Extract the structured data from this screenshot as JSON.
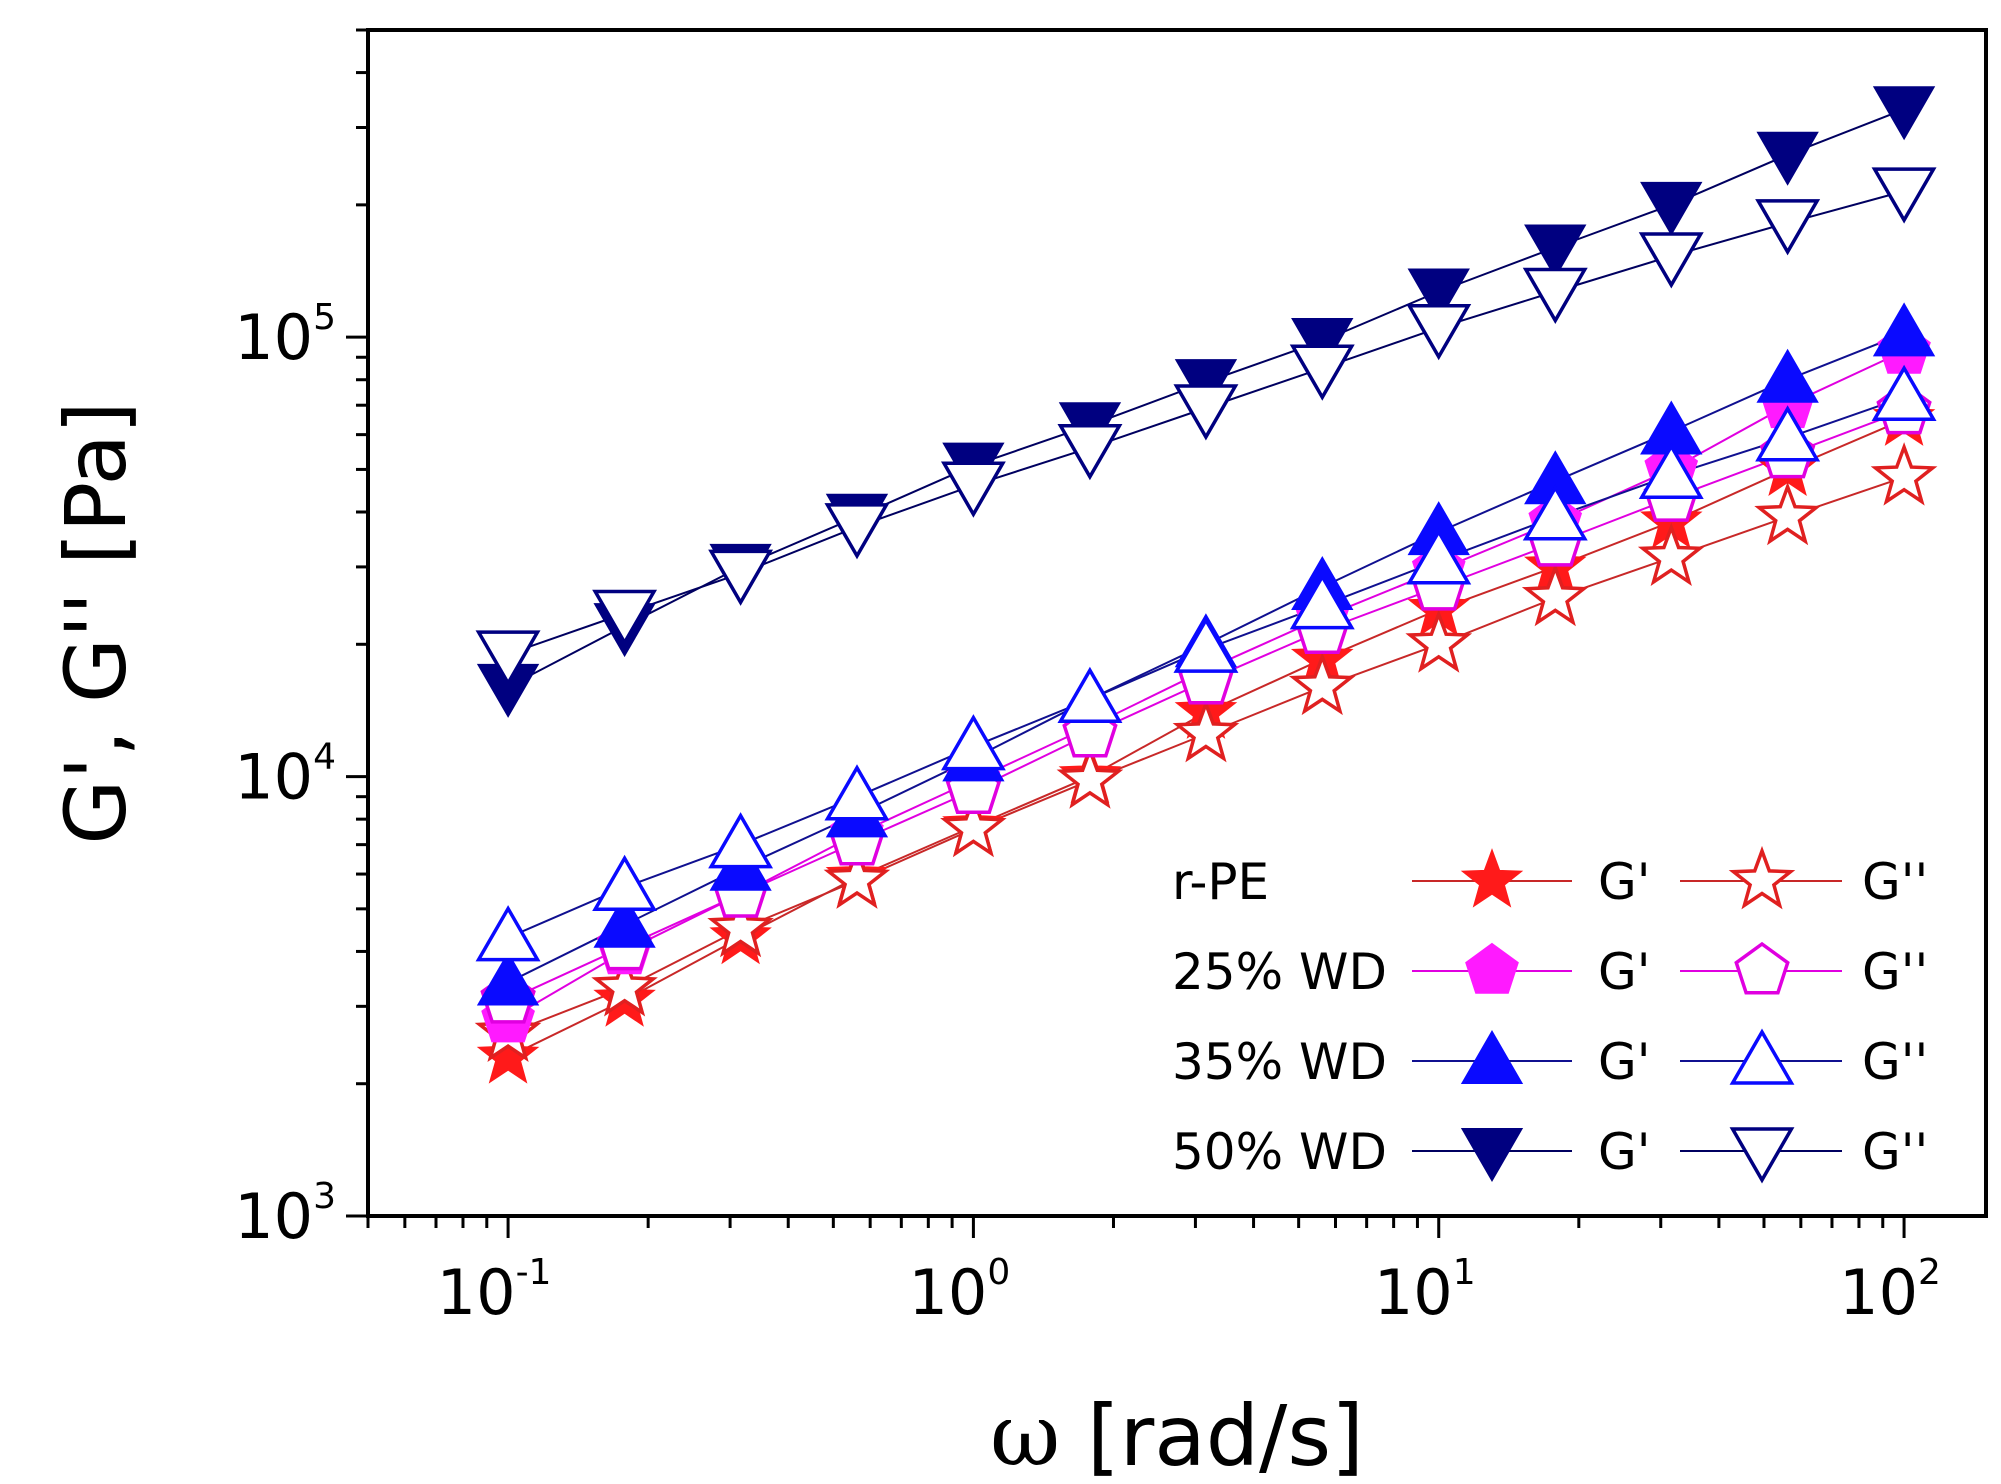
{
  "chart_data": {
    "type": "scatter",
    "title": "",
    "xlabel": "ω [rad/s]",
    "xlabel_symbol": "ω",
    "xlabel_rest": " [rad/s]",
    "ylabel": "G', G'' [Pa]",
    "xscale": "log",
    "yscale": "log",
    "xlim": [
      0.05,
      150
    ],
    "ylim": [
      1000,
      500000
    ],
    "grid": false,
    "legend_placement": "bottom-right",
    "x_ticks": [
      {
        "base": "10",
        "exp": "-1",
        "value": 0.1
      },
      {
        "base": "10",
        "exp": "0",
        "value": 1
      },
      {
        "base": "10",
        "exp": "1",
        "value": 10
      },
      {
        "base": "10",
        "exp": "2",
        "value": 100
      }
    ],
    "y_ticks": [
      {
        "base": "10",
        "exp": "3",
        "value": 1000
      },
      {
        "base": "10",
        "exp": "4",
        "value": 10000
      },
      {
        "base": "10",
        "exp": "5",
        "value": 100000
      }
    ],
    "x": [
      0.1,
      0.178,
      0.316,
      0.562,
      1.0,
      1.78,
      3.16,
      5.62,
      10.0,
      17.8,
      31.6,
      56.2,
      100.0
    ],
    "series": [
      {
        "name": "r-PE G'",
        "group": "r-PE",
        "modulus": "G'",
        "marker": "star",
        "filled": true,
        "color": "#ff1a1a",
        "line_color": "#c82828",
        "values": [
          2300,
          3100,
          4300,
          5900,
          7700,
          10000,
          14000,
          18500,
          24000,
          30000,
          38000,
          50000,
          65000
        ]
      },
      {
        "name": "r-PE G''",
        "group": "r-PE",
        "modulus": "G''",
        "marker": "star",
        "filled": false,
        "color": "#e02020",
        "line_color": "#c82828",
        "values": [
          2600,
          3300,
          4500,
          5800,
          7600,
          9800,
          12500,
          16000,
          20000,
          25500,
          31500,
          39000,
          48000
        ]
      },
      {
        "name": "25% WD G'",
        "group": "25% WD",
        "modulus": "G'",
        "marker": "pentagon",
        "filled": true,
        "color": "#ff1aff",
        "line_color": "#e000e0",
        "values": [
          2800,
          4000,
          5400,
          7400,
          9800,
          13000,
          17500,
          23000,
          29500,
          38000,
          50000,
          70000,
          93000
        ]
      },
      {
        "name": "25% WD G''",
        "group": "25% WD",
        "modulus": "G''",
        "marker": "pentagon",
        "filled": false,
        "color": "#e000e0",
        "line_color": "#e000e0",
        "values": [
          3100,
          4100,
          5400,
          7100,
          9300,
          12500,
          16500,
          21500,
          27000,
          34000,
          43000,
          54000,
          68000
        ]
      },
      {
        "name": "35% WD G'",
        "group": "35% WD",
        "modulus": "G'",
        "marker": "triangle-up",
        "filled": true,
        "color": "#0a0aff",
        "line_color": "#101090",
        "values": [
          3400,
          4600,
          6200,
          8200,
          11000,
          15000,
          20000,
          27000,
          36000,
          47000,
          61000,
          80000,
          102000
        ]
      },
      {
        "name": "35% WD G''",
        "group": "35% WD",
        "modulus": "G''",
        "marker": "triangle-up",
        "filled": false,
        "color": "#0a0aff",
        "line_color": "#101090",
        "values": [
          4300,
          5600,
          7000,
          9000,
          11700,
          15000,
          19500,
          24500,
          31000,
          39000,
          48500,
          59000,
          73000
        ]
      },
      {
        "name": "50% WD G'",
        "group": "50% WD",
        "modulus": "G'",
        "marker": "triangle-down",
        "filled": true,
        "color": "#000080",
        "line_color": "#000060",
        "values": [
          16000,
          22000,
          30000,
          39000,
          51000,
          63000,
          79000,
          98000,
          127000,
          160000,
          200000,
          260000,
          330000
        ]
      },
      {
        "name": "50% WD G''",
        "group": "50% WD",
        "modulus": "G''",
        "marker": "triangle-down",
        "filled": false,
        "color": "#000080",
        "line_color": "#000060",
        "values": [
          19000,
          23500,
          29000,
          37000,
          46000,
          56000,
          69000,
          85000,
          105000,
          127000,
          153000,
          182000,
          215000
        ]
      }
    ],
    "legend": {
      "rows": [
        {
          "group": "r-PE",
          "gp_label": "G'",
          "gpp_label": "G''",
          "marker": "star",
          "gp_color": "#ff1a1a",
          "gpp_color": "#e02020",
          "line_color": "#c82828"
        },
        {
          "group": "25% WD",
          "gp_label": "G'",
          "gpp_label": "G''",
          "marker": "pentagon",
          "gp_color": "#ff1aff",
          "gpp_color": "#e000e0",
          "line_color": "#e000e0"
        },
        {
          "group": "35% WD",
          "gp_label": "G'",
          "gpp_label": "G''",
          "marker": "triangle-up",
          "gp_color": "#0a0aff",
          "gpp_color": "#0a0aff",
          "line_color": "#101090"
        },
        {
          "group": "50% WD",
          "gp_label": "G'",
          "gpp_label": "G''",
          "marker": "triangle-down",
          "gp_color": "#000080",
          "gpp_color": "#000080",
          "line_color": "#000060"
        }
      ]
    }
  }
}
